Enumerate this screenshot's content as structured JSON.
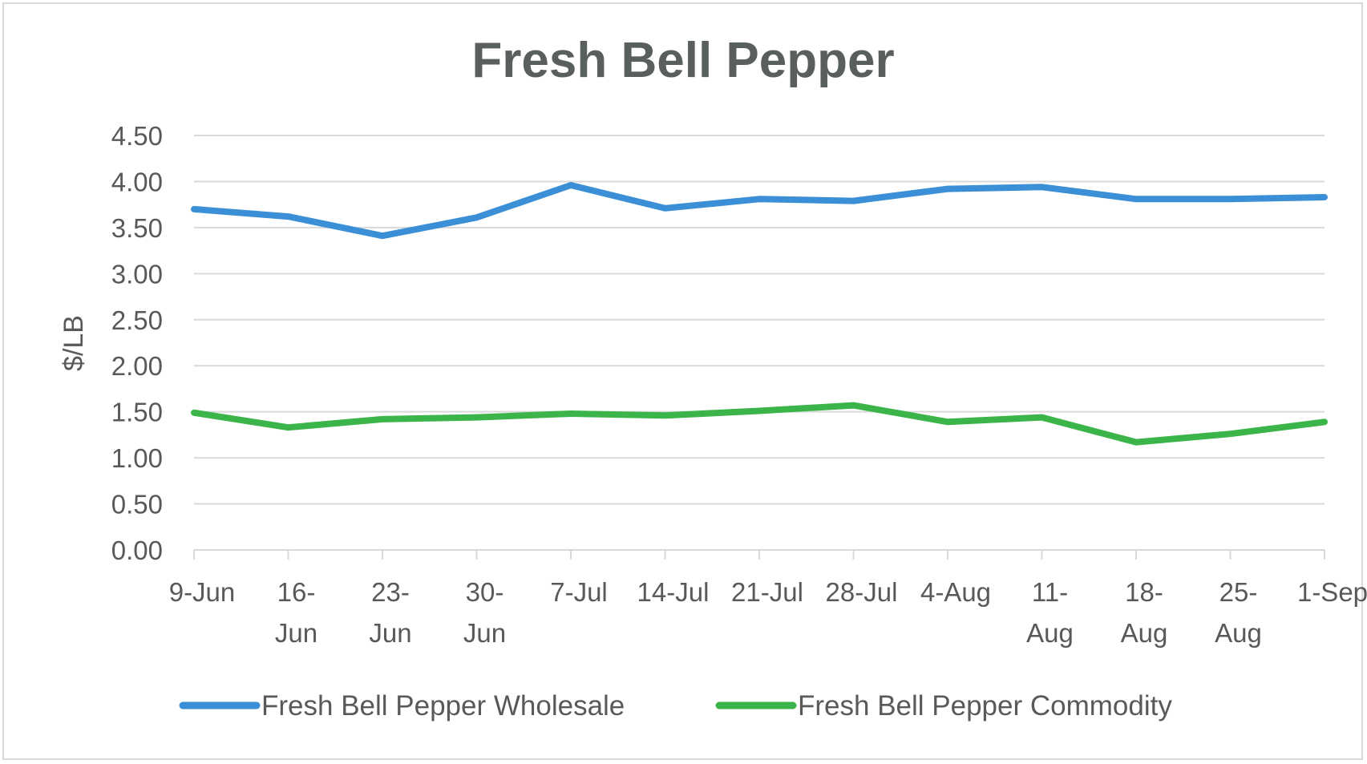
{
  "chart_data": {
    "type": "line",
    "title": "Fresh Bell Pepper",
    "xlabel": "",
    "ylabel": "$/LB",
    "ylim": [
      0,
      4.5
    ],
    "y_ticks": [
      "0.00",
      "0.50",
      "1.00",
      "1.50",
      "2.00",
      "2.50",
      "3.00",
      "3.50",
      "4.00",
      "4.50"
    ],
    "categories": [
      "9-Jun",
      "16-Jun",
      "23-Jun",
      "30-Jun",
      "7-Jul",
      "14-Jul",
      "21-Jul",
      "28-Jul",
      "4-Aug",
      "11-Aug",
      "18-Aug",
      "25-Aug",
      "1-Sep"
    ],
    "category_label_lines": [
      [
        "9-Jun"
      ],
      [
        "16-",
        "Jun"
      ],
      [
        "23-",
        "Jun"
      ],
      [
        "30-",
        "Jun"
      ],
      [
        "7-Jul"
      ],
      [
        "14-Jul"
      ],
      [
        "21-Jul"
      ],
      [
        "28-Jul"
      ],
      [
        "4-Aug"
      ],
      [
        "11-",
        "Aug"
      ],
      [
        "18-",
        "Aug"
      ],
      [
        "25-",
        "Aug"
      ],
      [
        "1-Sep"
      ]
    ],
    "grid": true,
    "legend_position": "bottom",
    "series": [
      {
        "name": "Fresh Bell Pepper Wholesale",
        "color": "#3a8fd6",
        "values": [
          3.7,
          3.62,
          3.41,
          3.61,
          3.96,
          3.71,
          3.81,
          3.79,
          3.92,
          3.94,
          3.81,
          3.81,
          3.83
        ]
      },
      {
        "name": "Fresh Bell Pepper Commodity",
        "color": "#3bb54a",
        "values": [
          1.49,
          1.33,
          1.42,
          1.44,
          1.48,
          1.46,
          1.51,
          1.57,
          1.39,
          1.44,
          1.17,
          1.26,
          1.39
        ]
      }
    ]
  }
}
